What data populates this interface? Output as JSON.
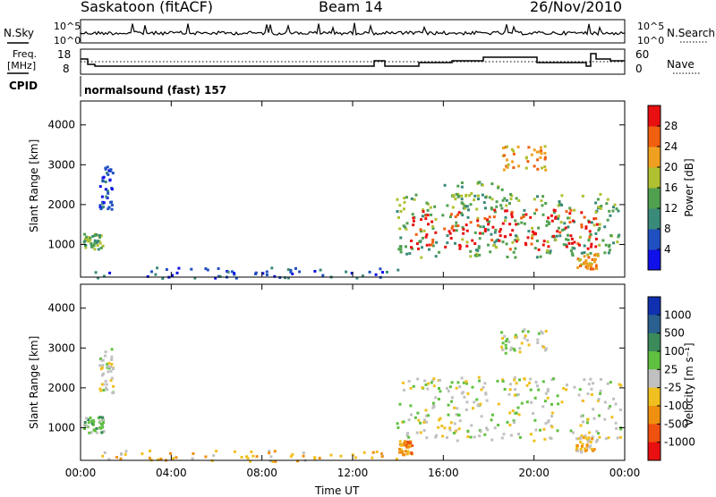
{
  "header": {
    "station": "Saskatoon (fitACF)",
    "beam": "Beam 14",
    "date": "26/Nov/2010"
  },
  "strip": {
    "nsky_label": "N.Sky",
    "nsky_ticks": [
      "10^5",
      "10^0"
    ],
    "nsearch_ticks": [
      "10^5",
      "10^0"
    ],
    "nsearch_label": "N.Search",
    "freq_label_1": "Freq.",
    "freq_label_2": "[MHz]",
    "freq_ticks": [
      "18",
      "8"
    ],
    "nave_ticks": [
      "60",
      "0"
    ],
    "nave_label": "Nave",
    "cpid_label": "CPID",
    "cpid_value": "normalsound (fast) 157"
  },
  "chart_data": [
    {
      "type": "heatmap",
      "name": "power",
      "xlabel": "",
      "ylabel": "Slant Range [km]",
      "x_ticks": [
        "00:00",
        "04:00",
        "08:00",
        "12:00",
        "16:00",
        "20:00",
        "00:00"
      ],
      "y_ticks": [
        1000,
        2000,
        3000,
        4000
      ],
      "ylim": [
        180,
        4600
      ],
      "xlim_hours": [
        0,
        24
      ],
      "colorbar": {
        "label": "Power [dB]",
        "ticks": [
          4,
          8,
          12,
          16,
          20,
          24,
          28
        ],
        "colors": [
          "#1010e8",
          "#2050c0",
          "#3a8a7a",
          "#50a050",
          "#b0c030",
          "#f0a020",
          "#f06010",
          "#e81010"
        ]
      },
      "regions": [
        {
          "t0": 0.1,
          "t1": 1.0,
          "r0": 900,
          "r1": 1300,
          "level": 3
        },
        {
          "t0": 0.8,
          "t1": 1.4,
          "r0": 1900,
          "r1": 3000,
          "level": 1
        },
        {
          "t0": 0.5,
          "t1": 14.0,
          "r0": 180,
          "r1": 450,
          "level": 1
        },
        {
          "t0": 13.9,
          "t1": 23.8,
          "r0": 700,
          "r1": 2300,
          "level": 3
        },
        {
          "t0": 14.5,
          "t1": 22.8,
          "r0": 900,
          "r1": 1900,
          "level": 7
        },
        {
          "t0": 18.5,
          "t1": 20.5,
          "r0": 2900,
          "r1": 3500,
          "level": 5
        },
        {
          "t0": 16.0,
          "t1": 19.0,
          "r0": 1900,
          "r1": 2600,
          "level": 3
        },
        {
          "t0": 21.8,
          "t1": 22.8,
          "r0": 400,
          "r1": 800,
          "level": 5
        }
      ]
    },
    {
      "type": "heatmap",
      "name": "velocity",
      "xlabel": "Time UT",
      "ylabel": "Slant Range [km]",
      "x_ticks": [
        "00:00",
        "04:00",
        "08:00",
        "12:00",
        "16:00",
        "20:00",
        "00:00"
      ],
      "y_ticks": [
        1000,
        2000,
        3000,
        4000
      ],
      "ylim": [
        180,
        4600
      ],
      "xlim_hours": [
        0,
        24
      ],
      "colorbar": {
        "label": "Velocity [m s⁻¹]",
        "ticks": [
          1000,
          500,
          100,
          25,
          -25,
          -100,
          -500,
          -1000
        ],
        "colors": [
          "#1030b0",
          "#2a6090",
          "#3a8a5a",
          "#60c040",
          "#c0c0c0",
          "#f0c020",
          "#f09010",
          "#f05010",
          "#e81010"
        ]
      },
      "regions": [
        {
          "t0": 0.1,
          "t1": 1.0,
          "r0": 900,
          "r1": 1300,
          "level": 3
        },
        {
          "t0": 0.8,
          "t1": 1.4,
          "r0": 1900,
          "r1": 3000,
          "level": 4
        },
        {
          "t0": 0.5,
          "t1": 14.0,
          "r0": 180,
          "r1": 450,
          "level": 5
        },
        {
          "t0": 13.9,
          "t1": 23.8,
          "r0": 700,
          "r1": 2300,
          "level": 4
        },
        {
          "t0": 18.5,
          "t1": 20.5,
          "r0": 2900,
          "r1": 3500,
          "level": 4
        },
        {
          "t0": 14.0,
          "t1": 14.6,
          "r0": 350,
          "r1": 700,
          "level": 6
        },
        {
          "t0": 21.8,
          "t1": 22.8,
          "r0": 400,
          "r1": 800,
          "level": 5
        }
      ]
    }
  ]
}
